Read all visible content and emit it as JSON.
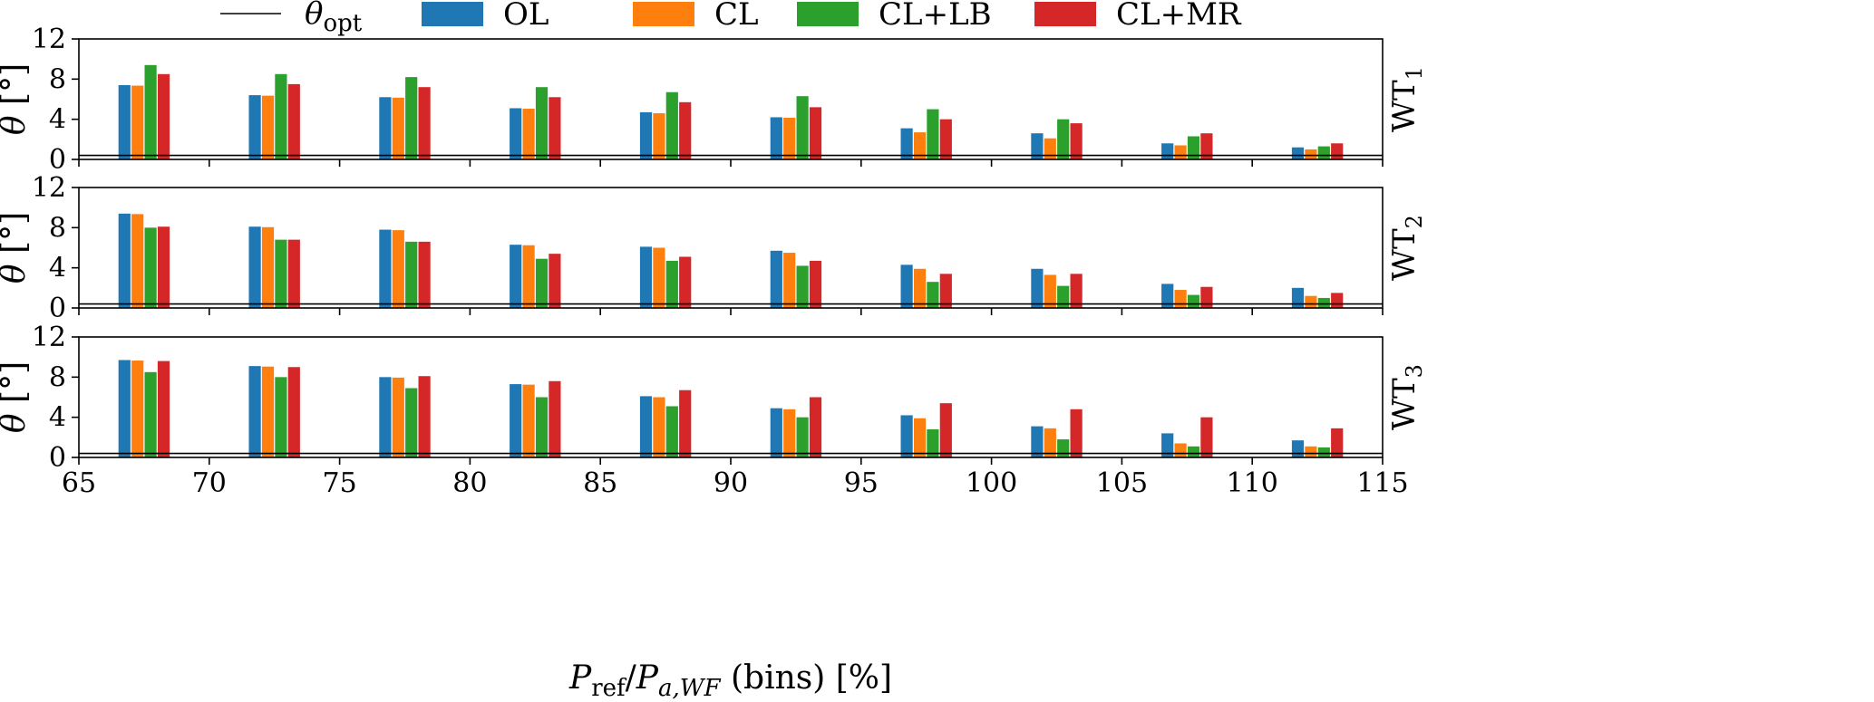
{
  "chart_data": {
    "type": "bar",
    "xlabel": {
      "main": "P",
      "sub1": "ref",
      "mid": "/P",
      "sub2": "a,WF",
      "tail": " (bins) [%]"
    },
    "ylabel": {
      "symbol": "θ",
      "unit": " [°]"
    },
    "xlim": [
      65,
      115
    ],
    "ylim": [
      0,
      12
    ],
    "xticks": [
      65,
      70,
      75,
      80,
      85,
      90,
      95,
      100,
      105,
      110,
      115
    ],
    "yticks": [
      0,
      4,
      8,
      12
    ],
    "theta_opt": 0.4,
    "legend": {
      "placement": "top",
      "line_entry": {
        "symbol": "θ",
        "sub": "opt"
      },
      "bar_entries": [
        "OL",
        "CL",
        "CL+LB",
        "CL+MR"
      ]
    },
    "colors": {
      "OL": "#1f77b4",
      "CL": "#ff7f0e",
      "CL+LB": "#2ca02c",
      "CL+MR": "#d62728",
      "line": "#000000"
    },
    "x": [
      67.5,
      72.5,
      77.5,
      82.5,
      87.5,
      92.5,
      97.5,
      102.5,
      107.5,
      112.5
    ],
    "panels": [
      {
        "label_main": "WT",
        "label_sub": "1",
        "series": [
          {
            "name": "OL",
            "values": [
              7.4,
              6.4,
              6.2,
              5.1,
              4.7,
              4.2,
              3.1,
              2.6,
              1.6,
              1.2
            ]
          },
          {
            "name": "CL",
            "values": [
              7.35,
              6.35,
              6.15,
              5.05,
              4.6,
              4.15,
              2.7,
              2.1,
              1.4,
              1.0
            ]
          },
          {
            "name": "CL+LB",
            "values": [
              9.4,
              8.5,
              8.2,
              7.2,
              6.7,
              6.3,
              5.0,
              4.0,
              2.3,
              1.3
            ]
          },
          {
            "name": "CL+MR",
            "values": [
              8.5,
              7.5,
              7.2,
              6.2,
              5.7,
              5.2,
              4.0,
              3.6,
              2.6,
              1.6
            ]
          }
        ]
      },
      {
        "label_main": "WT",
        "label_sub": "2",
        "series": [
          {
            "name": "OL",
            "values": [
              9.4,
              8.1,
              7.8,
              6.3,
              6.1,
              5.7,
              4.3,
              3.9,
              2.4,
              2.0
            ]
          },
          {
            "name": "CL",
            "values": [
              9.35,
              8.05,
              7.75,
              6.25,
              6.0,
              5.5,
              3.9,
              3.3,
              1.8,
              1.2
            ]
          },
          {
            "name": "CL+LB",
            "values": [
              8.0,
              6.8,
              6.6,
              4.9,
              4.7,
              4.2,
              2.6,
              2.2,
              1.3,
              1.0
            ]
          },
          {
            "name": "CL+MR",
            "values": [
              8.1,
              6.8,
              6.6,
              5.4,
              5.1,
              4.7,
              3.4,
              3.4,
              2.1,
              1.5
            ]
          }
        ]
      },
      {
        "label_main": "WT",
        "label_sub": "3",
        "series": [
          {
            "name": "OL",
            "values": [
              9.7,
              9.1,
              8.0,
              7.3,
              6.1,
              4.9,
              4.2,
              3.1,
              2.4,
              1.7
            ]
          },
          {
            "name": "CL",
            "values": [
              9.65,
              9.05,
              7.95,
              7.25,
              6.0,
              4.8,
              3.9,
              2.9,
              1.4,
              1.1
            ]
          },
          {
            "name": "CL+LB",
            "values": [
              8.5,
              8.0,
              6.9,
              6.0,
              5.1,
              4.0,
              2.8,
              1.8,
              1.1,
              1.0
            ]
          },
          {
            "name": "CL+MR",
            "values": [
              9.6,
              9.0,
              8.1,
              7.6,
              6.7,
              6.0,
              5.4,
              4.8,
              4.0,
              2.9
            ]
          }
        ]
      }
    ]
  }
}
